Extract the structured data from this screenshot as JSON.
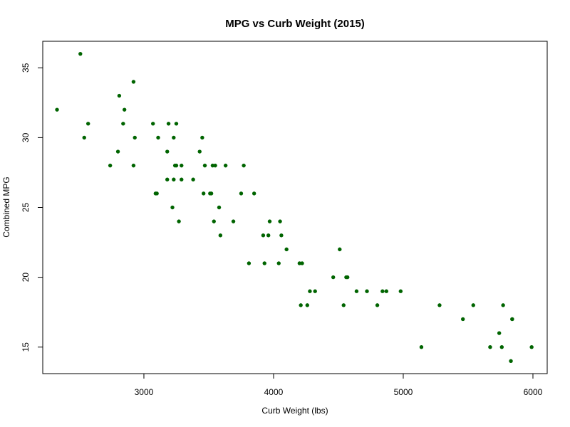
{
  "chart_data": {
    "type": "scatter",
    "title": "MPG vs Curb Weight (2015)",
    "xlabel": "Curb Weight (lbs)",
    "ylabel": "Combined MPG",
    "xlim": [
      2220,
      6110
    ],
    "ylim": [
      13.1,
      36.9
    ],
    "xticks": [
      3000,
      4000,
      5000,
      6000
    ],
    "yticks": [
      15,
      20,
      25,
      30,
      35
    ],
    "grid": false,
    "legend": "none",
    "point_color": "#006400",
    "points": [
      {
        "x": 2330,
        "y": 32
      },
      {
        "x": 2510,
        "y": 36
      },
      {
        "x": 2540,
        "y": 30
      },
      {
        "x": 2570,
        "y": 31
      },
      {
        "x": 2740,
        "y": 28
      },
      {
        "x": 2800,
        "y": 29
      },
      {
        "x": 2810,
        "y": 33
      },
      {
        "x": 2840,
        "y": 31
      },
      {
        "x": 2850,
        "y": 32
      },
      {
        "x": 2920,
        "y": 28
      },
      {
        "x": 2920,
        "y": 34
      },
      {
        "x": 2930,
        "y": 30
      },
      {
        "x": 3070,
        "y": 31
      },
      {
        "x": 3090,
        "y": 26
      },
      {
        "x": 3100,
        "y": 26
      },
      {
        "x": 3110,
        "y": 30
      },
      {
        "x": 3180,
        "y": 27
      },
      {
        "x": 3180,
        "y": 29
      },
      {
        "x": 3190,
        "y": 31
      },
      {
        "x": 3220,
        "y": 25
      },
      {
        "x": 3230,
        "y": 30
      },
      {
        "x": 3230,
        "y": 27
      },
      {
        "x": 3240,
        "y": 28
      },
      {
        "x": 3250,
        "y": 28
      },
      {
        "x": 3250,
        "y": 31
      },
      {
        "x": 3270,
        "y": 24
      },
      {
        "x": 3290,
        "y": 27
      },
      {
        "x": 3290,
        "y": 28
      },
      {
        "x": 3380,
        "y": 27
      },
      {
        "x": 3430,
        "y": 29
      },
      {
        "x": 3450,
        "y": 30
      },
      {
        "x": 3460,
        "y": 26
      },
      {
        "x": 3470,
        "y": 28
      },
      {
        "x": 3510,
        "y": 26
      },
      {
        "x": 3520,
        "y": 26
      },
      {
        "x": 3530,
        "y": 28
      },
      {
        "x": 3540,
        "y": 24
      },
      {
        "x": 3550,
        "y": 28
      },
      {
        "x": 3580,
        "y": 25
      },
      {
        "x": 3590,
        "y": 23
      },
      {
        "x": 3630,
        "y": 28
      },
      {
        "x": 3690,
        "y": 24
      },
      {
        "x": 3750,
        "y": 26
      },
      {
        "x": 3770,
        "y": 28
      },
      {
        "x": 3810,
        "y": 21
      },
      {
        "x": 3850,
        "y": 26
      },
      {
        "x": 3920,
        "y": 23
      },
      {
        "x": 3930,
        "y": 21
      },
      {
        "x": 3960,
        "y": 23
      },
      {
        "x": 3970,
        "y": 24
      },
      {
        "x": 4040,
        "y": 21
      },
      {
        "x": 4050,
        "y": 24
      },
      {
        "x": 4060,
        "y": 23
      },
      {
        "x": 4100,
        "y": 22
      },
      {
        "x": 4200,
        "y": 21
      },
      {
        "x": 4210,
        "y": 18
      },
      {
        "x": 4220,
        "y": 21
      },
      {
        "x": 4260,
        "y": 18
      },
      {
        "x": 4280,
        "y": 19
      },
      {
        "x": 4320,
        "y": 19
      },
      {
        "x": 4460,
        "y": 20
      },
      {
        "x": 4510,
        "y": 22
      },
      {
        "x": 4540,
        "y": 18
      },
      {
        "x": 4560,
        "y": 20
      },
      {
        "x": 4570,
        "y": 20
      },
      {
        "x": 4640,
        "y": 19
      },
      {
        "x": 4720,
        "y": 19
      },
      {
        "x": 4800,
        "y": 18
      },
      {
        "x": 4840,
        "y": 19
      },
      {
        "x": 4870,
        "y": 19
      },
      {
        "x": 4980,
        "y": 19
      },
      {
        "x": 5140,
        "y": 15
      },
      {
        "x": 5280,
        "y": 18
      },
      {
        "x": 5460,
        "y": 17
      },
      {
        "x": 5540,
        "y": 18
      },
      {
        "x": 5670,
        "y": 15
      },
      {
        "x": 5740,
        "y": 16
      },
      {
        "x": 5760,
        "y": 15
      },
      {
        "x": 5770,
        "y": 18
      },
      {
        "x": 5830,
        "y": 14
      },
      {
        "x": 5840,
        "y": 17
      },
      {
        "x": 5840,
        "y": 17
      },
      {
        "x": 5990,
        "y": 15
      }
    ]
  }
}
